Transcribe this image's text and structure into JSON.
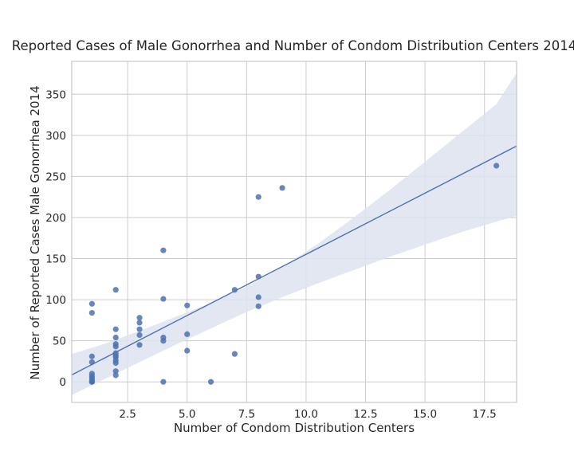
{
  "chart_data": {
    "type": "scatter",
    "title": "Reported Cases of Male Gonorrhea and Number of Condom Distribution Centers 2014",
    "xlabel": "Number of Condom Distribution Centers",
    "ylabel": "Number of Reported Cases Male Gonorrhea 2014",
    "xlim": [
      0.15,
      18.85
    ],
    "ylim": [
      -25,
      390
    ],
    "x_ticks": [
      2.5,
      5.0,
      7.5,
      10.0,
      12.5,
      15.0,
      17.5
    ],
    "x_tick_labels": [
      "2.5",
      "5.0",
      "7.5",
      "10.0",
      "12.5",
      "15.0",
      "17.5"
    ],
    "y_ticks": [
      0,
      50,
      100,
      150,
      200,
      250,
      300,
      350
    ],
    "y_tick_labels": [
      "0",
      "50",
      "100",
      "150",
      "200",
      "250",
      "300",
      "350"
    ],
    "grid": true,
    "style": "seaborn-whitegrid regplot",
    "colors": {
      "points": "#4c72b0",
      "line": "#4c72b0",
      "band": "#dde3f0",
      "grid": "#cccccc",
      "spine": "#c8c8c8"
    },
    "points": [
      {
        "x": 1,
        "y": 95
      },
      {
        "x": 1,
        "y": 84
      },
      {
        "x": 1,
        "y": 31
      },
      {
        "x": 1,
        "y": 24
      },
      {
        "x": 1,
        "y": 10
      },
      {
        "x": 1,
        "y": 7
      },
      {
        "x": 1,
        "y": 5
      },
      {
        "x": 1,
        "y": 2
      },
      {
        "x": 1,
        "y": 0
      },
      {
        "x": 1,
        "y": 0
      },
      {
        "x": 2,
        "y": 112
      },
      {
        "x": 2,
        "y": 64
      },
      {
        "x": 2,
        "y": 54
      },
      {
        "x": 2,
        "y": 46
      },
      {
        "x": 2,
        "y": 43
      },
      {
        "x": 2,
        "y": 35
      },
      {
        "x": 2,
        "y": 32
      },
      {
        "x": 2,
        "y": 30
      },
      {
        "x": 2,
        "y": 26
      },
      {
        "x": 2,
        "y": 23
      },
      {
        "x": 2,
        "y": 13
      },
      {
        "x": 2,
        "y": 8
      },
      {
        "x": 3,
        "y": 78
      },
      {
        "x": 3,
        "y": 72
      },
      {
        "x": 3,
        "y": 64
      },
      {
        "x": 3,
        "y": 57
      },
      {
        "x": 3,
        "y": 45
      },
      {
        "x": 4,
        "y": 160
      },
      {
        "x": 4,
        "y": 101
      },
      {
        "x": 4,
        "y": 54
      },
      {
        "x": 4,
        "y": 50
      },
      {
        "x": 4,
        "y": 0
      },
      {
        "x": 5,
        "y": 93
      },
      {
        "x": 5,
        "y": 58
      },
      {
        "x": 5,
        "y": 38
      },
      {
        "x": 6,
        "y": 0
      },
      {
        "x": 7,
        "y": 112
      },
      {
        "x": 7,
        "y": 34
      },
      {
        "x": 8,
        "y": 225
      },
      {
        "x": 8,
        "y": 128
      },
      {
        "x": 8,
        "y": 103
      },
      {
        "x": 8,
        "y": 92
      },
      {
        "x": 9,
        "y": 236
      },
      {
        "x": 18,
        "y": 263
      }
    ],
    "regression_line": [
      {
        "x": 0.15,
        "y": 8.5
      },
      {
        "x": 18.85,
        "y": 287
      }
    ],
    "confidence_band": {
      "x": [
        0.15,
        1.5,
        3,
        4.5,
        6,
        7.5,
        9,
        10.5,
        12,
        13.5,
        15,
        16.5,
        18,
        18.85
      ],
      "lower": [
        -16,
        3,
        24,
        45,
        65,
        85,
        103,
        120,
        136,
        152,
        167,
        182,
        195,
        202
      ],
      "upper": [
        34,
        46,
        62,
        79,
        96,
        116,
        140,
        168,
        200,
        233,
        268,
        303,
        338,
        376
      ]
    }
  }
}
